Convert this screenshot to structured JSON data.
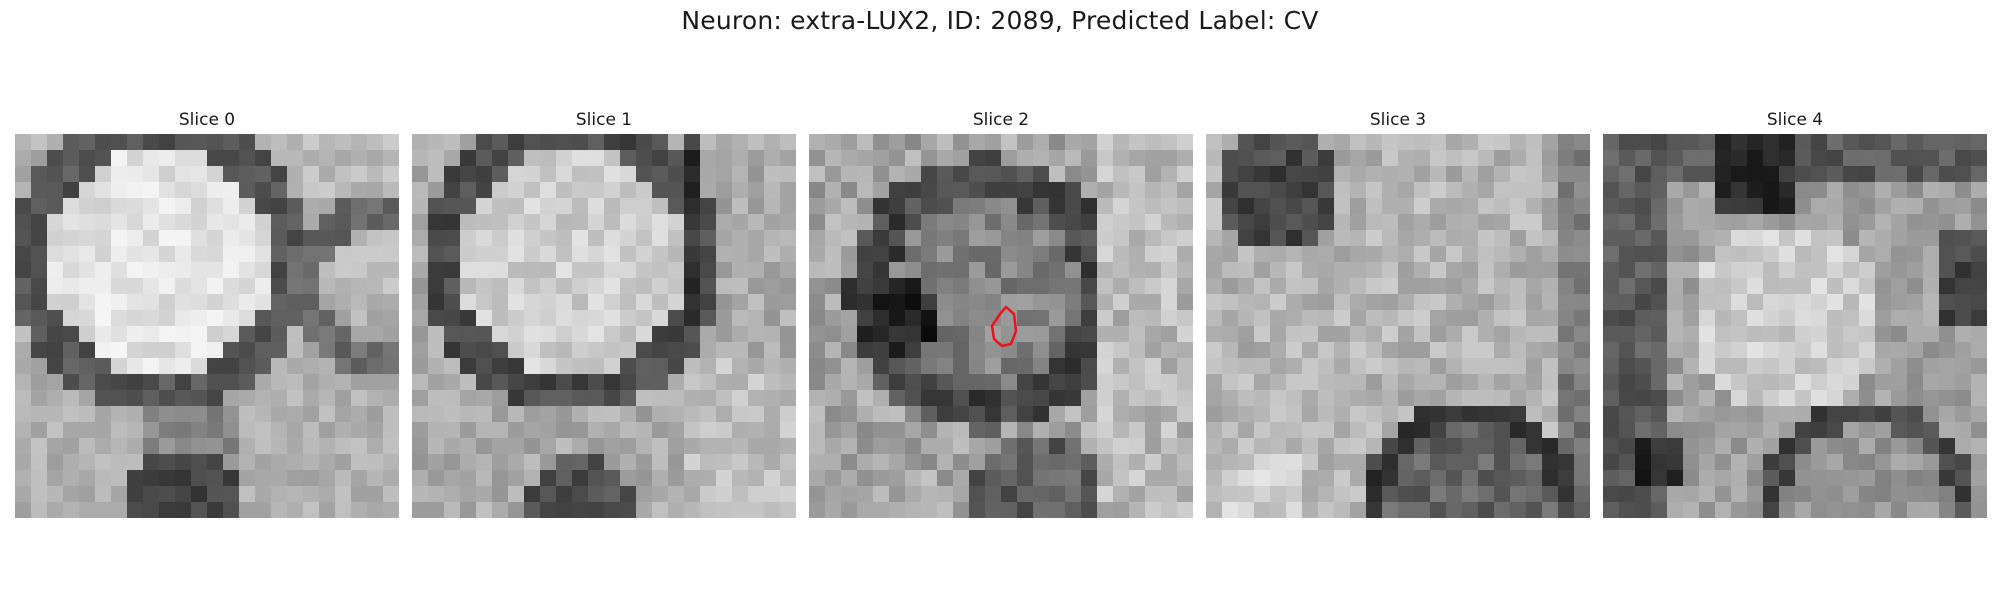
{
  "figure": {
    "title": "Neuron: extra-LUX2, ID: 2089, Predicted Label: CV"
  },
  "slices": [
    {
      "label": "Slice 0",
      "pattern": "bright-cell-circle"
    },
    {
      "label": "Slice 1",
      "pattern": "medium-cell-circle"
    },
    {
      "label": "Slice 2",
      "pattern": "dark-ring-with-roi",
      "roi": true
    },
    {
      "label": "Slice 3",
      "pattern": "diffuse-bright"
    },
    {
      "label": "Slice 4",
      "pattern": "diffuse-dark-edges"
    }
  ],
  "colors": {
    "roi_outline": "#e8141c",
    "colormap": "grayscale"
  }
}
